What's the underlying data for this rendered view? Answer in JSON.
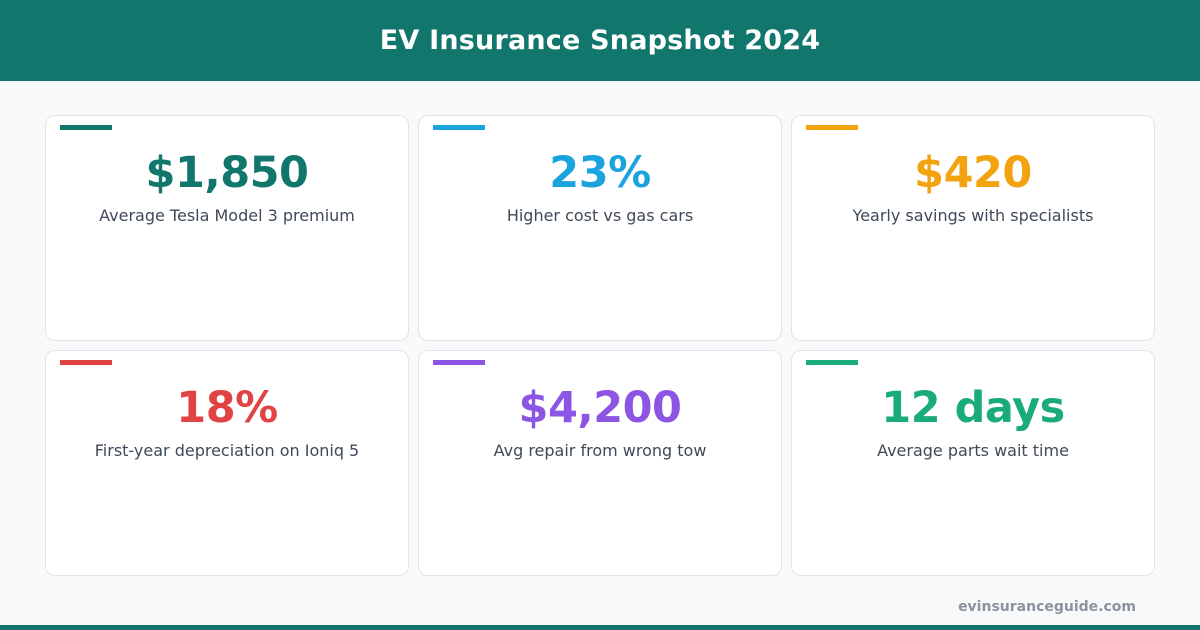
{
  "header": {
    "title": "EV Insurance Snapshot 2024"
  },
  "cards": [
    {
      "value": "$1,850",
      "label": "Average Tesla Model 3 premium",
      "color": "#11766c"
    },
    {
      "value": "23%",
      "label": "Higher cost vs gas cars",
      "color": "#1ba3de"
    },
    {
      "value": "$420",
      "label": "Yearly savings with specialists",
      "color": "#f2a30f"
    },
    {
      "value": "18%",
      "label": "First-year depreciation on Ioniq 5",
      "color": "#e04343"
    },
    {
      "value": "$4,200",
      "label": "Avg repair from wrong tow",
      "color": "#8c55e3"
    },
    {
      "value": "12 days",
      "label": "Average parts wait time",
      "color": "#19ac7a"
    }
  ],
  "footer": {
    "site": "evinsuranceguide.com"
  },
  "colors": {
    "brand": "#11766c",
    "background": "#f8f9fb"
  }
}
